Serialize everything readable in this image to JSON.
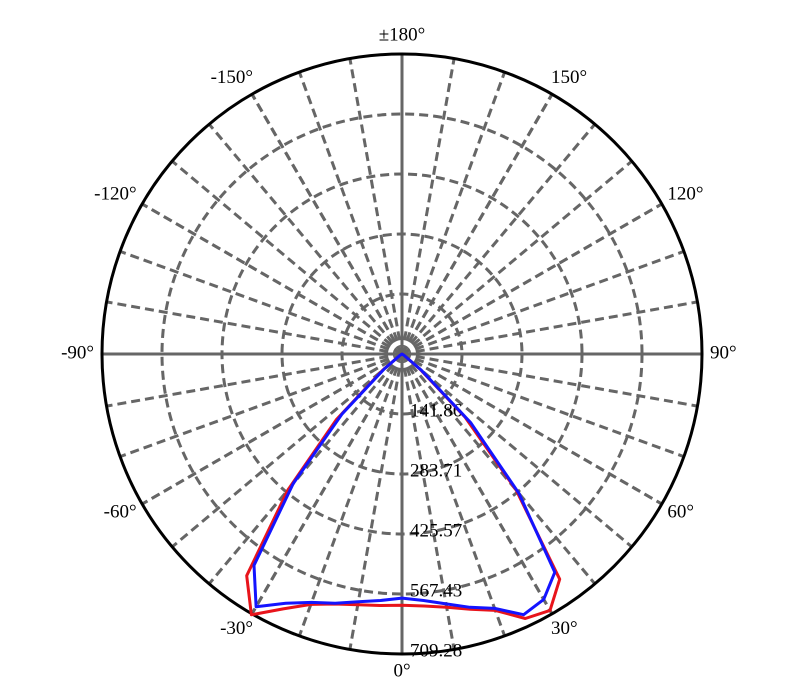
{
  "chart_data": {
    "type": "polar",
    "theta": [
      -90,
      -60,
      -50,
      -45,
      -40,
      -35,
      -30,
      -25,
      -20,
      -15,
      -10,
      -5,
      0,
      5,
      10,
      15,
      20,
      25,
      30,
      35,
      40,
      45,
      50,
      60,
      90
    ],
    "series": [
      {
        "color": "#e8141b",
        "values": [
          0,
          5,
          60,
          220,
          420,
          640,
          712,
          665,
          630,
          612,
          602,
          597,
          594,
          598,
          608,
          625,
          645,
          690,
          700,
          650,
          420,
          210,
          55,
          5,
          0
        ]
      },
      {
        "color": "#1414ff",
        "values": [
          0,
          5,
          55,
          200,
          400,
          610,
          690,
          650,
          625,
          610,
          595,
          585,
          577,
          585,
          600,
          620,
          640,
          680,
          670,
          630,
          430,
          230,
          60,
          5,
          0
        ]
      }
    ],
    "rlim": [
      0,
      709.28
    ],
    "rticks": [
      141.86,
      283.71,
      425.57,
      567.43,
      709.28
    ],
    "thetaticks": [
      {
        "value": 0,
        "label": "0°"
      },
      {
        "value": 30,
        "label": "30°"
      },
      {
        "value": 60,
        "label": "60°"
      },
      {
        "value": 90,
        "label": "90°"
      },
      {
        "value": 120,
        "label": "120°"
      },
      {
        "value": 150,
        "label": "150°"
      },
      {
        "value": 180,
        "label": "±180°"
      },
      {
        "value": -150,
        "label": "-150°"
      },
      {
        "value": -120,
        "label": "-120°"
      },
      {
        "value": -90,
        "label": "-90°"
      },
      {
        "value": -60,
        "label": "-60°"
      },
      {
        "value": -30,
        "label": "-30°"
      }
    ],
    "thetagrid": [
      -170,
      -160,
      -150,
      -140,
      -130,
      -120,
      -110,
      -100,
      -90,
      -80,
      -70,
      -60,
      -50,
      -40,
      -30,
      -20,
      -10,
      0,
      10,
      20,
      30,
      40,
      50,
      60,
      70,
      80,
      90,
      100,
      110,
      120,
      130,
      140,
      150,
      160,
      170,
      180
    ],
    "grid": true
  }
}
